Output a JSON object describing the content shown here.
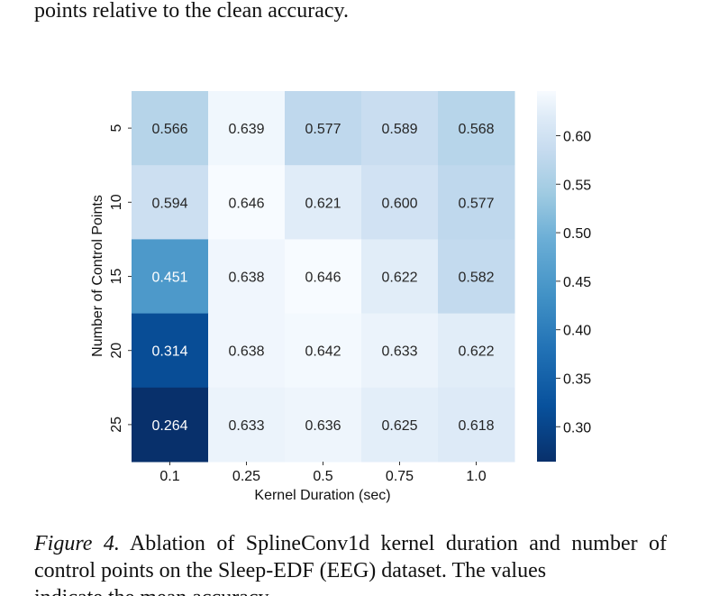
{
  "top_text": "points relative to the clean accuracy.",
  "caption": {
    "label": "Figure 4.",
    "text": "Ablation of SplineConv1d kernel duration and number of control points on the Sleep-EDF (EEG) dataset. The values",
    "cut_line": "indicate the mean accuracy."
  },
  "colormap": {
    "low": "#08306b",
    "mid": "#4292c6",
    "high": "#f7fbff"
  },
  "chart_data": {
    "type": "heatmap",
    "xlabel": "Kernel Duration (sec)",
    "ylabel": "Number of Control Points",
    "x_categories": [
      "0.1",
      "0.25",
      "0.5",
      "0.75",
      "1.0"
    ],
    "y_categories": [
      "5",
      "10",
      "15",
      "20",
      "25"
    ],
    "values": [
      [
        0.566,
        0.639,
        0.577,
        0.589,
        0.568
      ],
      [
        0.594,
        0.646,
        0.621,
        0.6,
        0.577
      ],
      [
        0.451,
        0.638,
        0.646,
        0.622,
        0.582
      ],
      [
        0.314,
        0.638,
        0.642,
        0.633,
        0.622
      ],
      [
        0.264,
        0.633,
        0.636,
        0.625,
        0.618
      ]
    ],
    "cell_labels": [
      [
        "0.566",
        "0.639",
        "0.577",
        "0.589",
        "0.568"
      ],
      [
        "0.594",
        "0.646",
        "0.621",
        "0.600",
        "0.577"
      ],
      [
        "0.451",
        "0.638",
        "0.646",
        "0.622",
        "0.582"
      ],
      [
        "0.314",
        "0.638",
        "0.642",
        "0.633",
        "0.622"
      ],
      [
        "0.264",
        "0.633",
        "0.636",
        "0.625",
        "0.618"
      ]
    ],
    "color_range": [
      0.264,
      0.646
    ],
    "colorbar_ticks": [
      "0.60",
      "0.55",
      "0.50",
      "0.45",
      "0.40",
      "0.35",
      "0.30"
    ],
    "colorbar_values": [
      0.6,
      0.55,
      0.5,
      0.45,
      0.4,
      0.35,
      0.3
    ],
    "colormap": "Blues"
  }
}
